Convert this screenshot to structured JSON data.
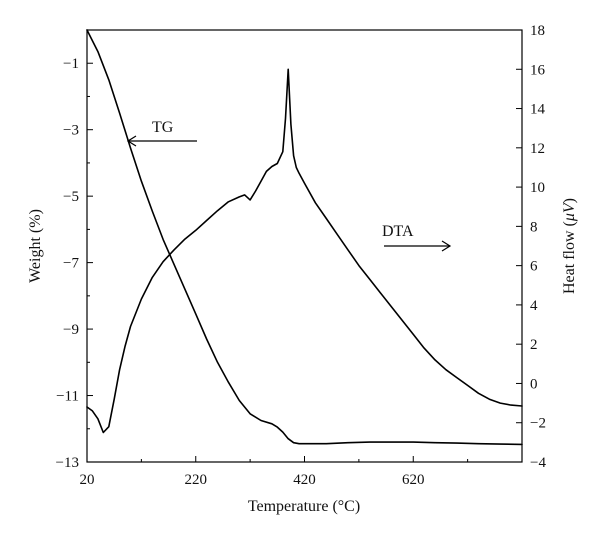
{
  "chart_data": {
    "type": "line",
    "xlabel": "Temperature (°C)",
    "ylabel_left": "Weight (%)",
    "ylabel_right_prefix": "Heat flow (",
    "ylabel_right_unit": "μV",
    "ylabel_right_suffix": ")",
    "xlim": [
      20,
      820
    ],
    "ylim_left": [
      -13,
      0
    ],
    "ylim_right": [
      -4,
      18
    ],
    "x_ticks": [
      20,
      220,
      420,
      620
    ],
    "x_tick_labels": [
      "20",
      "220",
      "420",
      "620"
    ],
    "y_left_ticks": [
      -1,
      -3,
      -5,
      -7,
      -9,
      -11,
      -13
    ],
    "y_left_tick_labels": [
      "−1",
      "−3",
      "−5",
      "−7",
      "−9",
      "−11",
      "−13"
    ],
    "y_right_ticks": [
      18,
      16,
      14,
      12,
      10,
      8,
      6,
      4,
      2,
      0,
      -2,
      -4
    ],
    "y_right_tick_labels": [
      "18",
      "16",
      "14",
      "12",
      "10",
      "8",
      "6",
      "4",
      "2",
      "0",
      "−2",
      "−4"
    ],
    "grid": false,
    "annotations": [
      {
        "text": "TG",
        "arrow": "left",
        "points_to": "left axis"
      },
      {
        "text": "DTA",
        "arrow": "right",
        "points_to": "right axis"
      }
    ],
    "series": [
      {
        "axis": "left",
        "x": [
          20,
          40,
          60,
          80,
          100,
          120,
          140,
          160,
          180,
          200,
          220,
          240,
          260,
          280,
          300,
          320,
          340,
          360,
          370,
          380,
          390,
          400,
          410,
          420,
          460,
          500,
          540,
          580,
          620,
          660,
          700,
          740,
          780,
          820
        ],
        "y": [
          0.0,
          -0.65,
          -1.5,
          -2.5,
          -3.55,
          -4.55,
          -5.45,
          -6.3,
          -7.05,
          -7.8,
          -8.55,
          -9.3,
          -10.0,
          -10.6,
          -11.15,
          -11.55,
          -11.75,
          -11.85,
          -11.95,
          -12.1,
          -12.3,
          -12.42,
          -12.45,
          -12.45,
          -12.45,
          -12.42,
          -12.4,
          -12.4,
          -12.4,
          -12.42,
          -12.43,
          -12.45,
          -12.46,
          -12.47
        ]
      },
      {
        "axis": "right",
        "x": [
          20,
          30,
          40,
          50,
          60,
          70,
          80,
          90,
          100,
          120,
          140,
          160,
          180,
          200,
          220,
          240,
          260,
          280,
          300,
          310,
          320,
          330,
          340,
          350,
          360,
          370,
          380,
          385,
          390,
          395,
          400,
          405,
          410,
          420,
          440,
          460,
          480,
          500,
          520,
          540,
          560,
          580,
          600,
          620,
          640,
          660,
          680,
          700,
          720,
          740,
          760,
          780,
          800,
          820
        ],
        "y": [
          -1.2,
          -1.4,
          -1.8,
          -2.5,
          -2.2,
          -0.8,
          0.7,
          1.9,
          2.9,
          4.3,
          5.4,
          6.2,
          6.8,
          7.35,
          7.8,
          8.3,
          8.8,
          9.25,
          9.5,
          9.6,
          9.35,
          9.8,
          10.3,
          10.8,
          11.05,
          11.2,
          11.8,
          13.5,
          16.0,
          13.2,
          11.6,
          11.0,
          10.7,
          10.2,
          9.2,
          8.4,
          7.6,
          6.8,
          6.0,
          5.3,
          4.6,
          3.9,
          3.2,
          2.5,
          1.8,
          1.2,
          0.7,
          0.3,
          -0.1,
          -0.5,
          -0.8,
          -1.0,
          -1.1,
          -1.15
        ]
      }
    ]
  }
}
